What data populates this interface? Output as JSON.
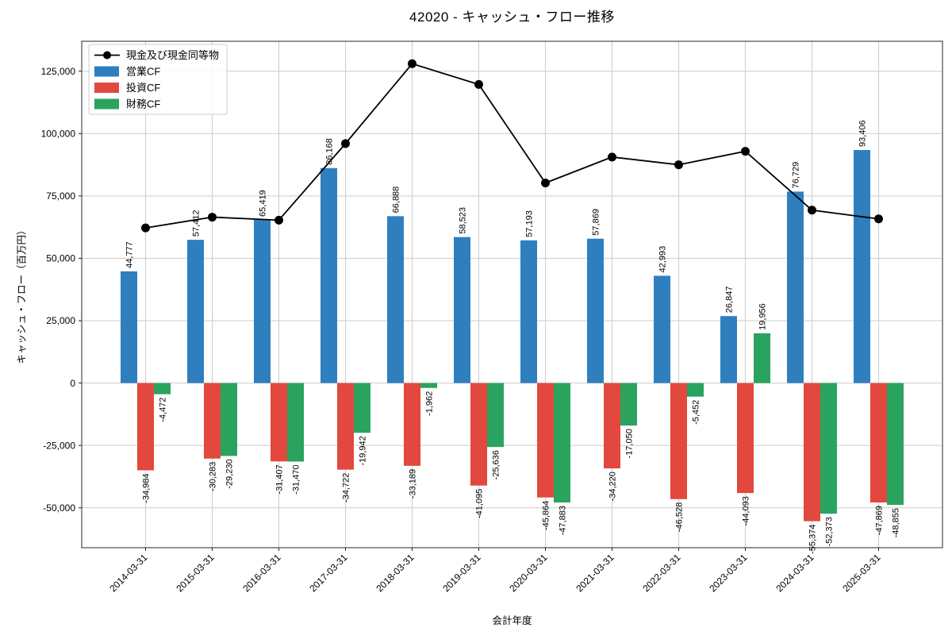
{
  "title": "42020 - キャッシュ・フロー推移",
  "chart_data": {
    "type": "bar+line",
    "title": "42020 - キャッシュ・フロー推移",
    "xlabel": "会計年度",
    "ylabel": "キャッシュ・フロー（百万円）",
    "grid": true,
    "legend_position": "upper-left",
    "ylim": [
      -66000,
      137000
    ],
    "y_ticks": [
      -50000,
      -25000,
      0,
      25000,
      50000,
      75000,
      100000,
      125000
    ],
    "categories": [
      "2014-03-31",
      "2015-03-31",
      "2016-03-31",
      "2017-03-31",
      "2018-03-31",
      "2019-03-31",
      "2020-03-31",
      "2021-03-31",
      "2022-03-31",
      "2023-03-31",
      "2024-03-31",
      "2025-03-31"
    ],
    "series": [
      {
        "key": "cash-and-equivalents",
        "name": "現金及び現金同等物",
        "type": "line",
        "color": "#000000",
        "values": [
          62200,
          66500,
          65300,
          96000,
          128000,
          119700,
          80200,
          90600,
          87500,
          92900,
          69300,
          65800
        ]
      },
      {
        "key": "operating-cf",
        "name": "営業CF",
        "type": "bar",
        "color": "#2f7fbf",
        "values": [
          44777,
          57412,
          65419,
          86168,
          66888,
          58523,
          57193,
          57869,
          42993,
          26847,
          76729,
          93406
        ]
      },
      {
        "key": "investing-cf",
        "name": "投資CF",
        "type": "bar",
        "color": "#e2483d",
        "values": [
          -34984,
          -30283,
          -31407,
          -34722,
          -33189,
          -41095,
          -45864,
          -34220,
          -46528,
          -44093,
          -55374,
          -47869
        ]
      },
      {
        "key": "financing-cf",
        "name": "財務CF",
        "type": "bar",
        "color": "#2aa35f",
        "values": [
          -4472,
          -29230,
          -31470,
          -19942,
          -1962,
          -25636,
          -47883,
          -17050,
          -5452,
          19956,
          -52373,
          -48855
        ]
      }
    ]
  }
}
